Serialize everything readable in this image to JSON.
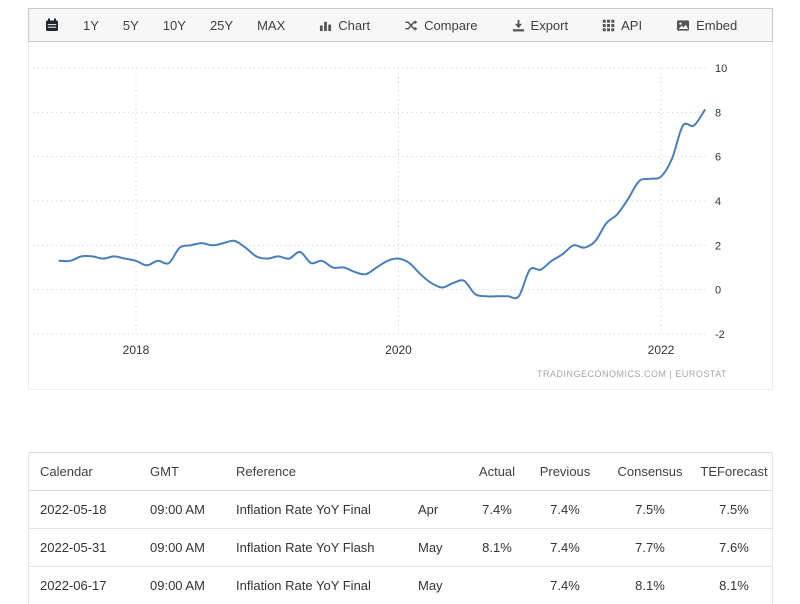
{
  "toolbar": {
    "ranges": [
      "1Y",
      "5Y",
      "10Y",
      "25Y",
      "MAX"
    ],
    "chart_label": "Chart",
    "compare_label": "Compare",
    "export_label": "Export",
    "api_label": "API",
    "embed_label": "Embed"
  },
  "chart_data": {
    "type": "line",
    "x": [
      "2017-06",
      "2017-07",
      "2017-08",
      "2017-09",
      "2017-10",
      "2017-11",
      "2017-12",
      "2018-01",
      "2018-02",
      "2018-03",
      "2018-04",
      "2018-05",
      "2018-06",
      "2018-07",
      "2018-08",
      "2018-09",
      "2018-10",
      "2018-11",
      "2018-12",
      "2019-01",
      "2019-02",
      "2019-03",
      "2019-04",
      "2019-05",
      "2019-06",
      "2019-07",
      "2019-08",
      "2019-09",
      "2019-10",
      "2019-11",
      "2019-12",
      "2020-01",
      "2020-02",
      "2020-03",
      "2020-04",
      "2020-05",
      "2020-06",
      "2020-07",
      "2020-08",
      "2020-09",
      "2020-10",
      "2020-11",
      "2020-12",
      "2021-01",
      "2021-02",
      "2021-03",
      "2021-04",
      "2021-05",
      "2021-06",
      "2021-07",
      "2021-08",
      "2021-09",
      "2021-10",
      "2021-11",
      "2021-12",
      "2022-01",
      "2022-02",
      "2022-03",
      "2022-04",
      "2022-05"
    ],
    "values": [
      1.3,
      1.3,
      1.5,
      1.5,
      1.4,
      1.5,
      1.4,
      1.3,
      1.1,
      1.3,
      1.2,
      1.9,
      2.0,
      2.1,
      2.0,
      2.1,
      2.2,
      1.9,
      1.5,
      1.4,
      1.5,
      1.4,
      1.7,
      1.2,
      1.3,
      1.0,
      1.0,
      0.8,
      0.7,
      1.0,
      1.3,
      1.4,
      1.2,
      0.7,
      0.3,
      0.1,
      0.3,
      0.4,
      -0.2,
      -0.3,
      -0.3,
      -0.3,
      -0.3,
      0.9,
      0.9,
      1.3,
      1.6,
      2.0,
      1.9,
      2.2,
      3.0,
      3.4,
      4.1,
      4.9,
      5.0,
      5.1,
      5.9,
      7.4,
      7.4,
      8.1
    ],
    "ylim": [
      -2,
      10
    ],
    "yticks": [
      10,
      8,
      6,
      4,
      2,
      0,
      -2
    ],
    "xticks": [
      "2018",
      "2020",
      "2022"
    ],
    "grid": "dotted",
    "legend": "none",
    "line_color": "#4a7ebb",
    "source": "TRADINGECONOMICS.COM  |  EUROSTAT"
  },
  "table": {
    "headers": [
      "Calendar",
      "GMT",
      "Reference",
      "",
      "Actual",
      "Previous",
      "Consensus",
      "TEForecast"
    ],
    "rows": [
      {
        "calendar": "2022-05-18",
        "gmt": "09:00 AM",
        "reference": "Inflation Rate YoY Final",
        "period": "Apr",
        "actual": "7.4%",
        "previous": "7.4%",
        "consensus": "7.5%",
        "teforecast": "7.5%"
      },
      {
        "calendar": "2022-05-31",
        "gmt": "09:00 AM",
        "reference": "Inflation Rate YoY Flash",
        "period": "May",
        "actual": "8.1%",
        "previous": "7.4%",
        "consensus": "7.7%",
        "teforecast": "7.6%"
      },
      {
        "calendar": "2022-06-17",
        "gmt": "09:00 AM",
        "reference": "Inflation Rate YoY Final",
        "period": "May",
        "actual": "",
        "previous": "7.4%",
        "consensus": "8.1%",
        "teforecast": "8.1%"
      }
    ]
  }
}
